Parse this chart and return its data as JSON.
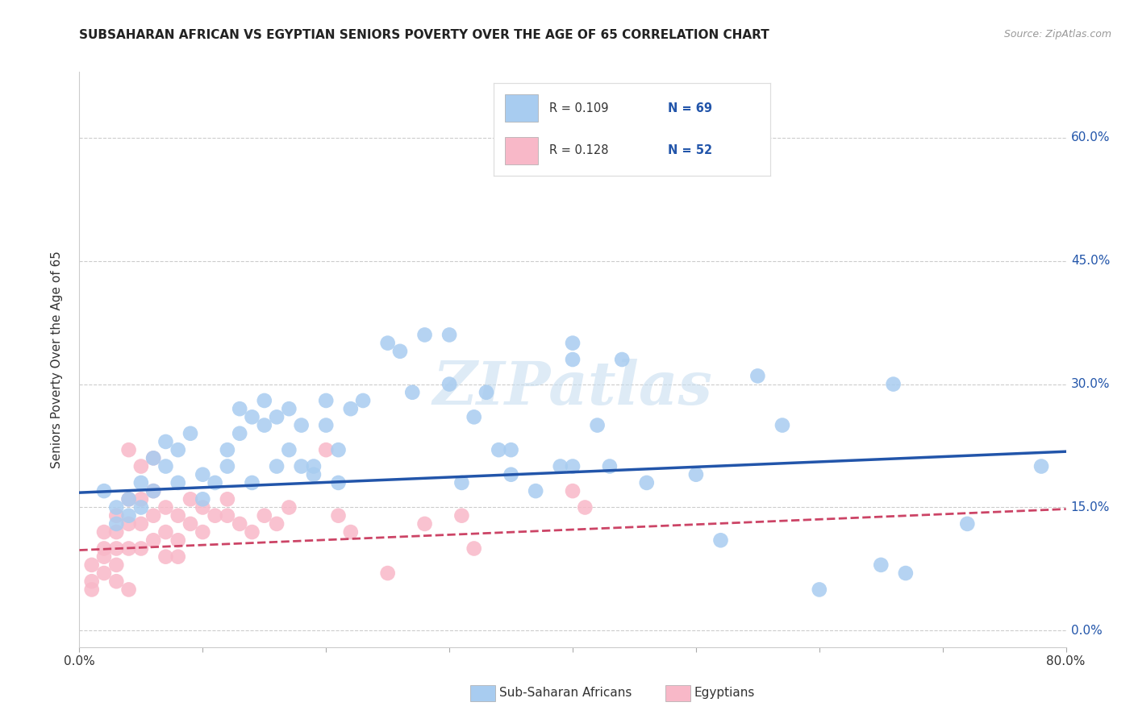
{
  "title": "SUBSAHARAN AFRICAN VS EGYPTIAN SENIORS POVERTY OVER THE AGE OF 65 CORRELATION CHART",
  "source": "Source: ZipAtlas.com",
  "ylabel": "Seniors Poverty Over the Age of 65",
  "xlim": [
    0.0,
    0.8
  ],
  "ylim": [
    -0.02,
    0.68
  ],
  "xticks": [
    0.0,
    0.1,
    0.2,
    0.3,
    0.4,
    0.5,
    0.6,
    0.7,
    0.8
  ],
  "ytick_positions": [
    0.0,
    0.15,
    0.3,
    0.45,
    0.6
  ],
  "ytick_labels_right": [
    "0.0%",
    "15.0%",
    "30.0%",
    "45.0%",
    "60.0%"
  ],
  "blue_color": "#A8CCF0",
  "pink_color": "#F8B8C8",
  "blue_line_color": "#2255AA",
  "pink_line_color": "#CC4466",
  "blue_scatter": [
    [
      0.02,
      0.17
    ],
    [
      0.03,
      0.15
    ],
    [
      0.03,
      0.13
    ],
    [
      0.04,
      0.16
    ],
    [
      0.04,
      0.14
    ],
    [
      0.05,
      0.18
    ],
    [
      0.05,
      0.15
    ],
    [
      0.06,
      0.17
    ],
    [
      0.06,
      0.21
    ],
    [
      0.07,
      0.23
    ],
    [
      0.07,
      0.2
    ],
    [
      0.08,
      0.22
    ],
    [
      0.08,
      0.18
    ],
    [
      0.09,
      0.24
    ],
    [
      0.1,
      0.19
    ],
    [
      0.1,
      0.16
    ],
    [
      0.11,
      0.18
    ],
    [
      0.12,
      0.22
    ],
    [
      0.12,
      0.2
    ],
    [
      0.13,
      0.27
    ],
    [
      0.13,
      0.24
    ],
    [
      0.14,
      0.18
    ],
    [
      0.14,
      0.26
    ],
    [
      0.15,
      0.28
    ],
    [
      0.15,
      0.25
    ],
    [
      0.16,
      0.26
    ],
    [
      0.16,
      0.2
    ],
    [
      0.17,
      0.27
    ],
    [
      0.17,
      0.22
    ],
    [
      0.18,
      0.25
    ],
    [
      0.18,
      0.2
    ],
    [
      0.19,
      0.2
    ],
    [
      0.19,
      0.19
    ],
    [
      0.2,
      0.28
    ],
    [
      0.2,
      0.25
    ],
    [
      0.21,
      0.22
    ],
    [
      0.21,
      0.18
    ],
    [
      0.22,
      0.27
    ],
    [
      0.23,
      0.28
    ],
    [
      0.25,
      0.35
    ],
    [
      0.26,
      0.34
    ],
    [
      0.27,
      0.29
    ],
    [
      0.28,
      0.36
    ],
    [
      0.3,
      0.36
    ],
    [
      0.3,
      0.3
    ],
    [
      0.31,
      0.18
    ],
    [
      0.32,
      0.26
    ],
    [
      0.33,
      0.29
    ],
    [
      0.34,
      0.22
    ],
    [
      0.35,
      0.19
    ],
    [
      0.35,
      0.22
    ],
    [
      0.37,
      0.17
    ],
    [
      0.39,
      0.2
    ],
    [
      0.4,
      0.33
    ],
    [
      0.4,
      0.2
    ],
    [
      0.4,
      0.35
    ],
    [
      0.42,
      0.25
    ],
    [
      0.43,
      0.2
    ],
    [
      0.44,
      0.33
    ],
    [
      0.46,
      0.18
    ],
    [
      0.5,
      0.19
    ],
    [
      0.52,
      0.11
    ],
    [
      0.55,
      0.31
    ],
    [
      0.57,
      0.25
    ],
    [
      0.6,
      0.05
    ],
    [
      0.65,
      0.08
    ],
    [
      0.66,
      0.3
    ],
    [
      0.67,
      0.07
    ],
    [
      0.72,
      0.13
    ],
    [
      0.78,
      0.2
    ]
  ],
  "pink_scatter": [
    [
      0.01,
      0.08
    ],
    [
      0.01,
      0.06
    ],
    [
      0.01,
      0.05
    ],
    [
      0.02,
      0.12
    ],
    [
      0.02,
      0.1
    ],
    [
      0.02,
      0.09
    ],
    [
      0.02,
      0.07
    ],
    [
      0.03,
      0.14
    ],
    [
      0.03,
      0.12
    ],
    [
      0.03,
      0.1
    ],
    [
      0.03,
      0.08
    ],
    [
      0.03,
      0.06
    ],
    [
      0.04,
      0.22
    ],
    [
      0.04,
      0.16
    ],
    [
      0.04,
      0.13
    ],
    [
      0.04,
      0.1
    ],
    [
      0.04,
      0.05
    ],
    [
      0.05,
      0.2
    ],
    [
      0.05,
      0.16
    ],
    [
      0.05,
      0.13
    ],
    [
      0.05,
      0.1
    ],
    [
      0.06,
      0.21
    ],
    [
      0.06,
      0.17
    ],
    [
      0.06,
      0.14
    ],
    [
      0.06,
      0.11
    ],
    [
      0.07,
      0.15
    ],
    [
      0.07,
      0.12
    ],
    [
      0.07,
      0.09
    ],
    [
      0.08,
      0.14
    ],
    [
      0.08,
      0.11
    ],
    [
      0.08,
      0.09
    ],
    [
      0.09,
      0.16
    ],
    [
      0.09,
      0.13
    ],
    [
      0.1,
      0.15
    ],
    [
      0.1,
      0.12
    ],
    [
      0.11,
      0.14
    ],
    [
      0.12,
      0.16
    ],
    [
      0.12,
      0.14
    ],
    [
      0.13,
      0.13
    ],
    [
      0.14,
      0.12
    ],
    [
      0.15,
      0.14
    ],
    [
      0.16,
      0.13
    ],
    [
      0.17,
      0.15
    ],
    [
      0.2,
      0.22
    ],
    [
      0.21,
      0.14
    ],
    [
      0.22,
      0.12
    ],
    [
      0.25,
      0.07
    ],
    [
      0.28,
      0.13
    ],
    [
      0.31,
      0.14
    ],
    [
      0.32,
      0.1
    ],
    [
      0.4,
      0.17
    ],
    [
      0.41,
      0.15
    ]
  ],
  "blue_reg": [
    0.0,
    0.8,
    0.168,
    0.218
  ],
  "pink_reg": [
    0.0,
    0.8,
    0.098,
    0.148
  ],
  "watermark": "ZIPatlas",
  "grid_color": "#CCCCCC",
  "bg_color": "#FFFFFF",
  "label1": "Sub-Saharan Africans",
  "label2": "Egyptians",
  "legend_text_color": "#333333",
  "legend_num_color": "#2255AA"
}
